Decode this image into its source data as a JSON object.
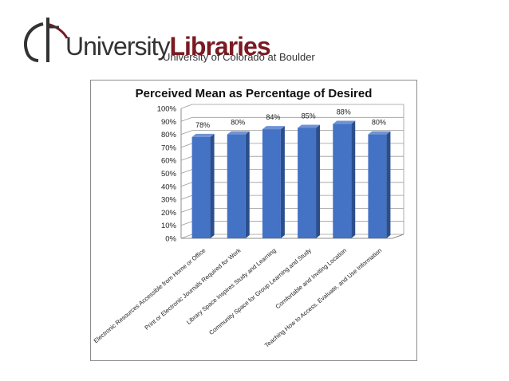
{
  "header": {
    "logo_word_1": "University",
    "logo_word_2": "Libraries",
    "logo_subtitle": "University of Colorado at Boulder"
  },
  "colors": {
    "bar": "#4472c4",
    "bar_dark": "#2b4e8c",
    "bar_top": "#6f93d6",
    "brand": "#7a1a22"
  },
  "chart_data": {
    "type": "bar",
    "title": "Perceived Mean as Percentage of Desired",
    "categories": [
      "Electronic Resources Accessible from Home or Office",
      "Print or Electronic Journals Required for Work",
      "Library Space Inspires Study and Learning",
      "Community Space for Group Learning and Study",
      "Comfortable and Inviting Location",
      "Teaching How to Access, Evaluate, and Use Information"
    ],
    "values": [
      78,
      80,
      84,
      85,
      88,
      80
    ],
    "data_labels": [
      "78%",
      "80%",
      "84%",
      "85%",
      "88%",
      "80%"
    ],
    "y_ticks": [
      "0%",
      "10%",
      "20%",
      "30%",
      "40%",
      "50%",
      "60%",
      "70%",
      "80%",
      "90%",
      "100%"
    ],
    "ylim": [
      0,
      100
    ],
    "grid": true,
    "legend": "none"
  }
}
